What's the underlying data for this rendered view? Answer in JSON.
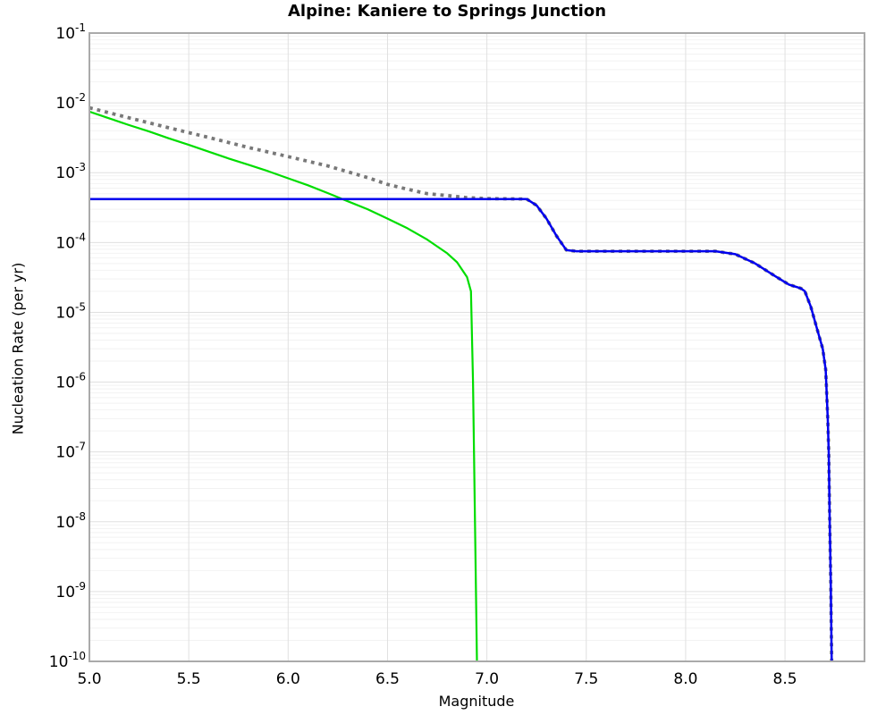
{
  "chart": {
    "title": "Alpine: Kaniere to Springs Junction",
    "xlabel": "Magnitude",
    "ylabel": "Nucleation Rate (per yr)"
  },
  "chart_data": {
    "type": "line",
    "title": "Alpine: Kaniere to Springs Junction",
    "xlabel": "Magnitude",
    "ylabel": "Nucleation Rate (per yr)",
    "xlim": [
      5.0,
      8.9
    ],
    "ylim": [
      1e-10,
      0.1
    ],
    "y_log": true,
    "grid": {
      "major": true,
      "minor": true,
      "major_color": "#e0e0e0",
      "minor_color": "#f2f2f2"
    },
    "frame_color": "#aaaaaa",
    "legend": "none",
    "x_ticks": [
      {
        "v": 5.0,
        "label": "5.0"
      },
      {
        "v": 5.5,
        "label": "5.5"
      },
      {
        "v": 6.0,
        "label": "6.0"
      },
      {
        "v": 6.5,
        "label": "6.5"
      },
      {
        "v": 7.0,
        "label": "7.0"
      },
      {
        "v": 7.5,
        "label": "7.5"
      },
      {
        "v": 8.0,
        "label": "8.0"
      },
      {
        "v": 8.5,
        "label": "8.5"
      }
    ],
    "y_tick_exponents": [
      -1,
      -2,
      -3,
      -4,
      -5,
      -6,
      -7,
      -8,
      -9,
      -10
    ],
    "series": [
      {
        "name": "dotted-gray-curve",
        "color": "#787878",
        "width": 3.8,
        "dash": "3.8 5",
        "points": [
          [
            5.0,
            0.0085
          ],
          [
            5.2,
            0.0061
          ],
          [
            5.4,
            0.0044
          ],
          [
            5.6,
            0.0032
          ],
          [
            5.8,
            0.0023
          ],
          [
            6.0,
            0.0017
          ],
          [
            6.2,
            0.00125
          ],
          [
            6.4,
            0.00085
          ],
          [
            6.5,
            0.00068
          ],
          [
            6.6,
            0.00058
          ],
          [
            6.7,
            0.0005
          ],
          [
            6.8,
            0.00047
          ],
          [
            6.9,
            0.00044
          ],
          [
            7.0,
            0.000425
          ],
          [
            7.2,
            0.00042
          ],
          [
            7.25,
            0.00034
          ],
          [
            7.3,
            0.00022
          ],
          [
            7.35,
            0.000125
          ],
          [
            7.4,
            7.8e-05
          ],
          [
            7.45,
            7.5e-05
          ],
          [
            8.15,
            7.5e-05
          ],
          [
            8.25,
            6.8e-05
          ],
          [
            8.35,
            5e-05
          ],
          [
            8.45,
            3.3e-05
          ],
          [
            8.52,
            2.5e-05
          ],
          [
            8.58,
            2.2e-05
          ],
          [
            8.6,
            2e-05
          ],
          [
            8.63,
            1.2e-05
          ],
          [
            8.66,
            6e-06
          ],
          [
            8.69,
            3e-06
          ],
          [
            8.705,
            1.5e-06
          ],
          [
            8.715,
            3e-07
          ],
          [
            8.72,
            1e-07
          ],
          [
            8.725,
            1e-08
          ],
          [
            8.73,
            1.5e-09
          ],
          [
            8.735,
            1e-10
          ]
        ]
      },
      {
        "name": "green-gr-curve",
        "color": "#00dd00",
        "width": 2.2,
        "dash": "",
        "points": [
          [
            5.0,
            0.0075
          ],
          [
            5.1,
            0.006
          ],
          [
            5.2,
            0.0048
          ],
          [
            5.3,
            0.0039
          ],
          [
            5.4,
            0.0031
          ],
          [
            5.5,
            0.0025
          ],
          [
            5.6,
            0.002
          ],
          [
            5.7,
            0.0016
          ],
          [
            5.8,
            0.0013
          ],
          [
            5.9,
            0.00105
          ],
          [
            6.0,
            0.00083
          ],
          [
            6.1,
            0.00066
          ],
          [
            6.2,
            0.00051
          ],
          [
            6.3,
            0.00039
          ],
          [
            6.4,
            0.0003
          ],
          [
            6.5,
            0.00022
          ],
          [
            6.6,
            0.00016
          ],
          [
            6.7,
            0.00011
          ],
          [
            6.8,
            7e-05
          ],
          [
            6.85,
            5.2e-05
          ],
          [
            6.9,
            3.2e-05
          ],
          [
            6.92,
            2e-05
          ],
          [
            6.93,
            1e-06
          ],
          [
            6.94,
            1e-08
          ],
          [
            6.95,
            1e-10
          ]
        ]
      },
      {
        "name": "blue-inversion-curve",
        "color": "#0000ee",
        "width": 2.5,
        "dash": "",
        "points": [
          [
            5.0,
            0.00042
          ],
          [
            7.2,
            0.00042
          ],
          [
            7.25,
            0.00034
          ],
          [
            7.3,
            0.00022
          ],
          [
            7.35,
            0.000125
          ],
          [
            7.4,
            7.8e-05
          ],
          [
            7.45,
            7.5e-05
          ],
          [
            8.15,
            7.5e-05
          ],
          [
            8.25,
            6.8e-05
          ],
          [
            8.35,
            5e-05
          ],
          [
            8.45,
            3.3e-05
          ],
          [
            8.52,
            2.5e-05
          ],
          [
            8.58,
            2.2e-05
          ],
          [
            8.6,
            2e-05
          ],
          [
            8.63,
            1.2e-05
          ],
          [
            8.66,
            6e-06
          ],
          [
            8.69,
            3e-06
          ],
          [
            8.705,
            1.5e-06
          ],
          [
            8.715,
            3e-07
          ],
          [
            8.72,
            1e-07
          ],
          [
            8.725,
            1e-08
          ],
          [
            8.73,
            1.5e-09
          ],
          [
            8.735,
            1e-10
          ]
        ]
      }
    ]
  }
}
